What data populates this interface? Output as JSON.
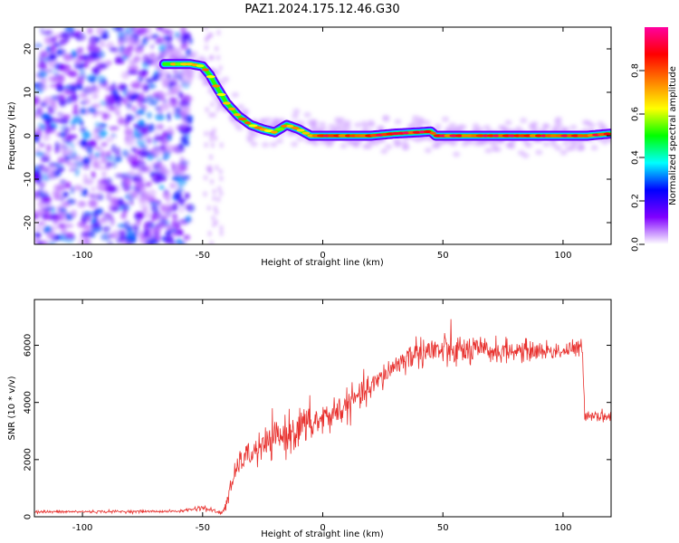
{
  "title": "PAZ1.2024.175.12.46.G30",
  "chart_data": [
    {
      "type": "heatmap",
      "xlabel": "Height of straight line (km)",
      "ylabel": "Frequency (Hz)",
      "xlim": [
        -120,
        120
      ],
      "ylim": [
        -25,
        25
      ],
      "xticks": [
        -100,
        -50,
        0,
        50,
        100
      ],
      "yticks": [
        -20,
        -10,
        0,
        10,
        20
      ],
      "colorbar": {
        "label": "Normalized spectral amplitude",
        "range": [
          0,
          1
        ],
        "ticks": [
          0.0,
          0.2,
          0.4,
          0.6,
          0.8
        ],
        "colors": [
          "#ffffff",
          "#8000ff",
          "#0000ff",
          "#00ffff",
          "#00ff00",
          "#ffff00",
          "#ff8000",
          "#ff0000",
          "#ff00a0"
        ]
      },
      "ridge": {
        "x": [
          -65,
          -60,
          -55,
          -50,
          -47,
          -45,
          -40,
          -35,
          -30,
          -25,
          -20,
          -15,
          -10,
          -5,
          0,
          10,
          20,
          30,
          40,
          45,
          47,
          50,
          60,
          70,
          80,
          90,
          100,
          110,
          120
        ],
        "freq": [
          16.5,
          16.5,
          16.5,
          16,
          14,
          12,
          7.5,
          4.5,
          2.5,
          1.5,
          0.8,
          2.5,
          1.5,
          0,
          0,
          0,
          0,
          0.5,
          0.8,
          1,
          0,
          0,
          0,
          0,
          0,
          0,
          0,
          0,
          0.5
        ]
      },
      "noise_region": {
        "x": [
          -120,
          -55
        ],
        "freq": [
          -25,
          25
        ]
      },
      "grid": false
    },
    {
      "type": "line",
      "xlabel": "Height of straight line (km)",
      "ylabel": "SNR (10 * v/v)",
      "xlim": [
        -120,
        120
      ],
      "ylim": [
        0,
        7600
      ],
      "xticks": [
        -100,
        -50,
        0,
        50,
        100
      ],
      "yticks": [
        0,
        2000,
        4000,
        6000
      ],
      "color": "#e8312e",
      "envelope": {
        "x": [
          -120,
          -60,
          -50,
          -42,
          -40,
          -35,
          -30,
          -20,
          -10,
          0,
          10,
          20,
          30,
          40,
          50,
          60,
          80,
          100,
          108,
          109,
          120
        ],
        "mean": [
          170,
          190,
          320,
          120,
          500,
          1900,
          2200,
          2700,
          3100,
          3400,
          3900,
          4500,
          5300,
          5800,
          5800,
          5800,
          5800,
          5800,
          5900,
          3600,
          3500
        ],
        "spread": [
          50,
          40,
          90,
          60,
          250,
          350,
          450,
          600,
          700,
          600,
          500,
          450,
          400,
          500,
          600,
          500,
          350,
          300,
          300,
          200,
          200
        ]
      },
      "grid": false
    }
  ]
}
